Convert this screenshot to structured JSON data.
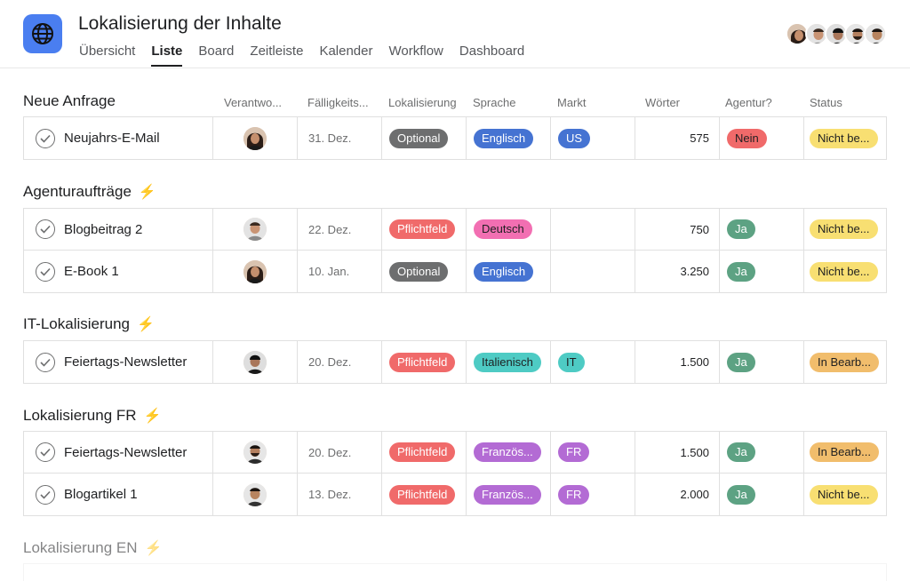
{
  "header": {
    "title": "Lokalisierung der Inhalte",
    "tabs": [
      {
        "label": "Übersicht",
        "active": false
      },
      {
        "label": "Liste",
        "active": true
      },
      {
        "label": "Board",
        "active": false
      },
      {
        "label": "Zeitleiste",
        "active": false
      },
      {
        "label": "Kalender",
        "active": false
      },
      {
        "label": "Workflow",
        "active": false
      },
      {
        "label": "Dashboard",
        "active": false
      }
    ],
    "app_icon": "globe-icon",
    "member_count_shown": 5
  },
  "columns": [
    "Verantwo...",
    "Fälligkeits...",
    "Lokalisierung",
    "Sprache",
    "Markt",
    "Wörter",
    "Agentur?",
    "Status"
  ],
  "colors": {
    "optional": "#6d6e6f",
    "pflichtfeld": "#f06a6a",
    "englisch": "#4573d2",
    "deutsch": "#f26fb2",
    "italienisch": "#4ecbc4",
    "franzoesisch": "#b36bd4",
    "us": "#4573d2",
    "it": "#4ecbc4",
    "fr": "#b36bd4",
    "nein": "#f06a6a",
    "ja": "#5da283",
    "nicht_begonnen": "#f8df72",
    "in_bearbeitung": "#f1bd6c",
    "bolt": "#f5a623",
    "accent": "#4a7ef0"
  },
  "sections": [
    {
      "title": "Neue Anfrage",
      "bolt": false,
      "rows": [
        {
          "name": "Neujahrs-E-Mail",
          "due": "31. Dez.",
          "loc": "Optional",
          "lang": "Englisch",
          "market": "US",
          "words": "575",
          "agency": "Nein",
          "status": "Nicht be..."
        }
      ]
    },
    {
      "title": "Agenturaufträge",
      "bolt": true,
      "rows": [
        {
          "name": "Blogbeitrag 2",
          "due": "22. Dez.",
          "loc": "Pflichtfeld",
          "lang": "Deutsch",
          "market": "",
          "words": "750",
          "agency": "Ja",
          "status": "Nicht be..."
        },
        {
          "name": "E-Book 1",
          "due": "10. Jan.",
          "loc": "Optional",
          "lang": "Englisch",
          "market": "",
          "words": "3.250",
          "agency": "Ja",
          "status": "Nicht be..."
        }
      ]
    },
    {
      "title": "IT-Lokalisierung",
      "bolt": true,
      "rows": [
        {
          "name": "Feiertags-Newsletter",
          "due": "20. Dez.",
          "loc": "Pflichtfeld",
          "lang": "Italienisch",
          "market": "IT",
          "words": "1.500",
          "agency": "Ja",
          "status": "In Bearb..."
        }
      ]
    },
    {
      "title": "Lokalisierung FR",
      "bolt": true,
      "rows": [
        {
          "name": "Feiertags-Newsletter",
          "due": "20. Dez.",
          "loc": "Pflichtfeld",
          "lang": "Französ...",
          "market": "FR",
          "words": "1.500",
          "agency": "Ja",
          "status": "In Bearb..."
        },
        {
          "name": "Blogartikel 1",
          "due": "13. Dez.",
          "loc": "Pflichtfeld",
          "lang": "Französ...",
          "market": "FR",
          "words": "2.000",
          "agency": "Ja",
          "status": "Nicht be..."
        }
      ]
    },
    {
      "title": "Lokalisierung EN",
      "bolt": true,
      "rows": []
    }
  ]
}
